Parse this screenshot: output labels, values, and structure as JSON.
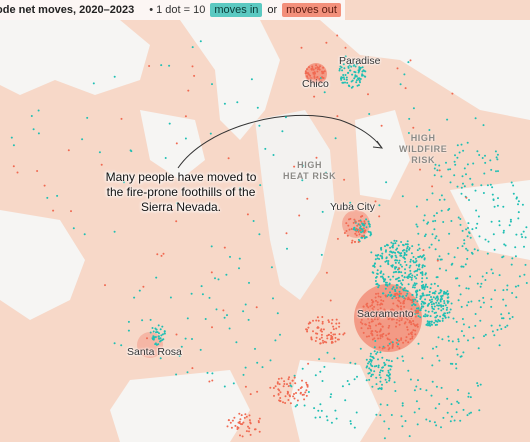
{
  "header": {
    "title": "ode net moves, 2020–2023",
    "key_prefix": "• 1 dot = 10",
    "moves_in_label": "moves in",
    "connector": "or",
    "moves_out_label": "moves out"
  },
  "colors": {
    "moves_in": "#1fbfb3",
    "moves_out": "#f06a52",
    "land_net_out": "#f7d6c6",
    "land_net_in": "#f4f4f2",
    "annotation_arrow": "#333333"
  },
  "cities": {
    "paradise": "Paradise",
    "chico": "Chico",
    "yuba_city": "Yuba City",
    "sacramento": "Sacramento",
    "santa_rosa": "Santa Rosa"
  },
  "regions": {
    "high_heat_risk": "HIGH\nHEAT RISK",
    "high_wildfire_risk": "HIGH\nWILDFIRE\nRISK"
  },
  "annotation": {
    "text": "Many people have moved to the fire-prone foothills of the Sierra Nevada."
  }
}
